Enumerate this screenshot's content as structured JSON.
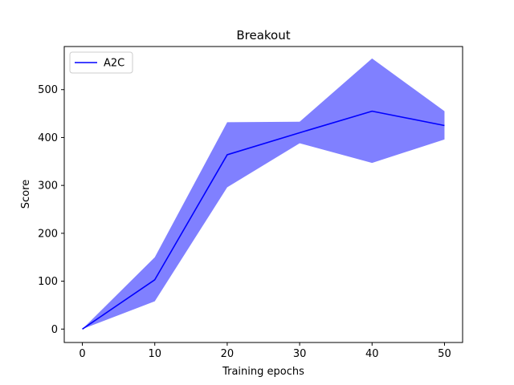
{
  "chart_data": {
    "type": "line",
    "title": "Breakout",
    "xlabel": "Training epochs",
    "ylabel": "Score",
    "x": [
      0,
      10,
      20,
      30,
      40,
      50
    ],
    "xlim": [
      -2.5,
      52.5
    ],
    "ylim": [
      -28,
      590
    ],
    "xticks": [
      0,
      10,
      20,
      30,
      40,
      50
    ],
    "yticks": [
      0,
      100,
      200,
      300,
      400,
      500
    ],
    "grid": false,
    "legend_position": "upper-left",
    "series": [
      {
        "name": "A2C",
        "color": "#0000ff",
        "fill_color": "#8080ff",
        "values": [
          0,
          103,
          364,
          410,
          455,
          425
        ],
        "upper": [
          0,
          150,
          432,
          433,
          565,
          455
        ],
        "lower": [
          0,
          58,
          296,
          388,
          347,
          396
        ]
      }
    ]
  }
}
